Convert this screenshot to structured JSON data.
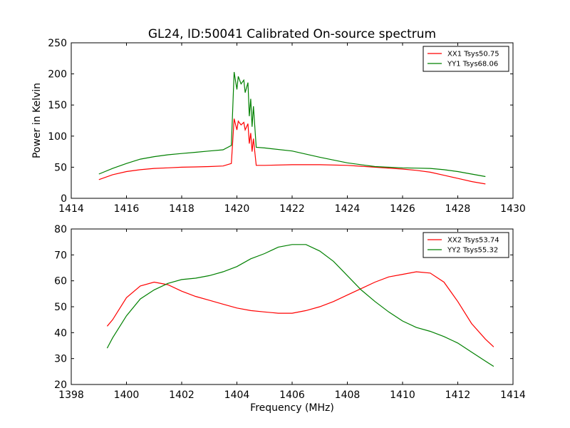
{
  "figure": {
    "title": "GL24, ID:50041 Calibrated On-source spectrum"
  },
  "chart_data": [
    {
      "type": "line",
      "title": "GL24, ID:50041 Calibrated On-source spectrum",
      "xlabel": "",
      "ylabel": "Power in Kelvin",
      "xlim": [
        1414,
        1430
      ],
      "ylim": [
        0,
        250
      ],
      "xticks": [
        1414,
        1416,
        1418,
        1420,
        1422,
        1424,
        1426,
        1428,
        1430
      ],
      "yticks": [
        0,
        50,
        100,
        150,
        200,
        250
      ],
      "grid": false,
      "legend": "top-right",
      "series": [
        {
          "name": "XX1 Tsys50.75",
          "color": "#ff0000",
          "x": [
            1415.0,
            1415.5,
            1416.0,
            1416.5,
            1417.0,
            1417.5,
            1418.0,
            1418.5,
            1419.0,
            1419.5,
            1419.8,
            1419.9,
            1420.0,
            1420.05,
            1420.15,
            1420.25,
            1420.3,
            1420.4,
            1420.45,
            1420.5,
            1420.55,
            1420.6,
            1420.7,
            1421.0,
            1422.0,
            1423.0,
            1424.0,
            1425.0,
            1426.0,
            1426.5,
            1427.0,
            1427.5,
            1428.0,
            1428.5,
            1429.0
          ],
          "y": [
            30,
            38,
            43,
            46,
            48,
            49,
            50,
            50.5,
            51,
            52,
            56,
            128,
            110,
            124,
            118,
            122,
            110,
            120,
            88,
            105,
            75,
            96,
            53,
            53,
            54,
            54,
            53,
            50,
            47,
            45,
            42,
            37,
            32,
            27,
            23
          ]
        },
        {
          "name": "YY1 Tsys68.06",
          "color": "#008000",
          "x": [
            1415.0,
            1415.5,
            1416.0,
            1416.5,
            1417.0,
            1417.5,
            1418.0,
            1418.5,
            1419.0,
            1419.5,
            1419.8,
            1419.9,
            1420.0,
            1420.05,
            1420.15,
            1420.25,
            1420.3,
            1420.4,
            1420.45,
            1420.5,
            1420.55,
            1420.6,
            1420.7,
            1421.0,
            1422.0,
            1423.0,
            1424.0,
            1425.0,
            1426.0,
            1426.5,
            1427.0,
            1427.5,
            1428.0,
            1428.5,
            1429.0
          ],
          "y": [
            39,
            48,
            56,
            63,
            67,
            70,
            72,
            74,
            76,
            78,
            85,
            203,
            175,
            196,
            184,
            190,
            170,
            186,
            132,
            160,
            115,
            148,
            82,
            81,
            76,
            66,
            57,
            51,
            49,
            48.5,
            48,
            46,
            43,
            39,
            35
          ]
        }
      ]
    },
    {
      "type": "line",
      "title": "",
      "xlabel": "Frequency (MHz)",
      "ylabel": "",
      "xlim": [
        1398,
        1414
      ],
      "ylim": [
        20,
        80
      ],
      "xticks": [
        1398,
        1400,
        1402,
        1404,
        1406,
        1408,
        1410,
        1412,
        1414
      ],
      "yticks": [
        20,
        30,
        40,
        50,
        60,
        70,
        80
      ],
      "grid": false,
      "legend": "top-right",
      "series": [
        {
          "name": "XX2 Tsys53.74",
          "color": "#ff0000",
          "x": [
            1399.3,
            1399.5,
            1400.0,
            1400.5,
            1401.0,
            1401.5,
            1402.0,
            1402.5,
            1403.0,
            1403.5,
            1404.0,
            1404.5,
            1405.0,
            1405.5,
            1406.0,
            1406.5,
            1407.0,
            1407.5,
            1408.0,
            1408.5,
            1409.0,
            1409.5,
            1410.0,
            1410.5,
            1411.0,
            1411.5,
            1412.0,
            1412.5,
            1413.0,
            1413.3
          ],
          "y": [
            42.5,
            45,
            53.5,
            58,
            59.5,
            58.5,
            56,
            54,
            52.5,
            51,
            49.5,
            48.5,
            48,
            47.5,
            47.5,
            48.5,
            50,
            52,
            54.5,
            57,
            59.5,
            61.5,
            62.5,
            63.5,
            63,
            59.5,
            52,
            43.5,
            37.5,
            34.5
          ]
        },
        {
          "name": "YY2 Tsys55.32",
          "color": "#008000",
          "x": [
            1399.3,
            1399.5,
            1400.0,
            1400.5,
            1401.0,
            1401.5,
            1402.0,
            1402.5,
            1403.0,
            1403.5,
            1404.0,
            1404.5,
            1405.0,
            1405.5,
            1406.0,
            1406.5,
            1407.0,
            1407.5,
            1408.0,
            1408.5,
            1409.0,
            1409.5,
            1410.0,
            1410.5,
            1411.0,
            1411.5,
            1412.0,
            1412.5,
            1413.0,
            1413.3
          ],
          "y": [
            34,
            38,
            46.5,
            53,
            56.5,
            59,
            60.5,
            61,
            62,
            63.5,
            65.5,
            68.5,
            70.5,
            73,
            74,
            74,
            71.5,
            67.5,
            62,
            56.5,
            52,
            48,
            44.5,
            42,
            40.5,
            38.5,
            36,
            32.5,
            29,
            27
          ]
        }
      ]
    }
  ]
}
